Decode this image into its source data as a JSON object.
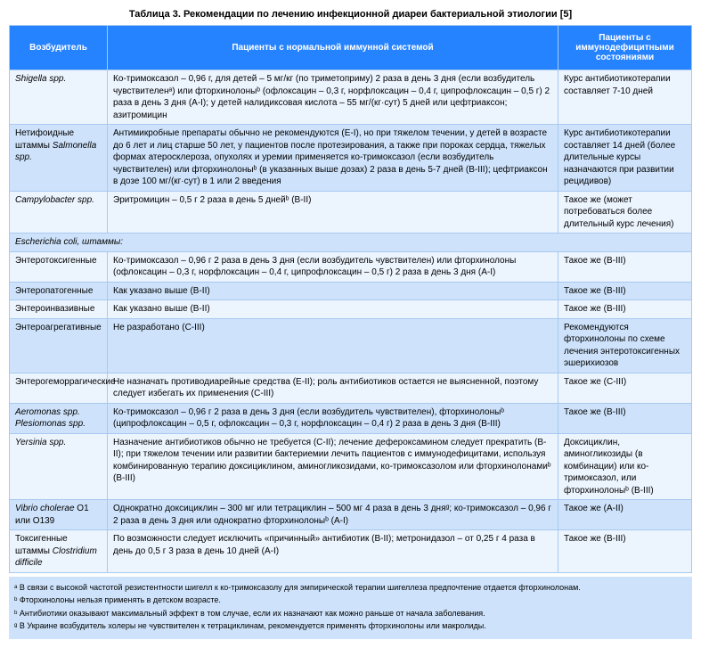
{
  "title": "Таблица 3. Рекомендации по лечению инфекционной диареи бактериальной этиологии [5]",
  "headers": {
    "pathogen": "Возбудитель",
    "normal": "Пациенты с нормальной иммунной системой",
    "immuno": "Пациенты с иммунодефицитными состояниями"
  },
  "rows": [
    {
      "cls": "light",
      "c1": "Shigella spp.",
      "c1_italic": true,
      "c2": "Ко-тримоксазол – 0,96 г, для детей – 5 мг/кг (по триметоприму) 2 раза в день 3 дня (если возбудитель чувствителенᵃ) или фторхинолоныᵇ (офлоксацин – 0,3 г, норфлоксацин – 0,4 г, ципрофлоксацин – 0,5 г) 2 раза в день 3 дня (A-I); у детей налидиксовая кислота – 55 мг/(кг·сут) 5 дней или цефтриаксон; азитромицин",
      "c3": "Курс антибиотикотерапии составляет 7-10 дней"
    },
    {
      "cls": "dark",
      "c1": "Нетифоидные штаммы Salmonella spp.",
      "c1_html": "Нетифоидные штаммы <i>Salmonella spp.</i>",
      "c2": "Антимикробные препараты обычно не рекомендуются (E-I), но при тяжелом течении, у детей в возрасте до 6 лет и лиц старше 50 лет, у пациентов после протезирования, а также при пороках сердца, тяжелых формах атеросклероза, опухолях и уремии применяется ко-тримоксазол (если возбудитель чувствителен) или фторхинолоныᵇ (в указанных выше дозах) 2 раза в день 5-7 дней (B-III); цефтриаксон в дозе 100 мг/(кг·сут) в 1 или 2 введения",
      "c3": "Курс антибиотикотерапии составляет 14 дней (более длительные курсы назначаются при развитии рецидивов)"
    },
    {
      "cls": "light",
      "c1": "Campylobacter spp.",
      "c1_italic": true,
      "c2": "Эритромицин – 0,5 г 2 раза в день 5 днейᵇ (B-II)",
      "c3": "Такое же (может потребоваться более длительный курс лечения)"
    }
  ],
  "subheader": "Escherichia coli, штаммы:",
  "subheader_html": "<i>Escherichia coli</i>, штаммы:",
  "rows2": [
    {
      "cls": "light",
      "c1": "Энтеротоксигенные",
      "c2": "Ко-тримоксазол – 0,96 г 2 раза в день 3 дня (если возбудитель чувствителен) или фторхинолоны (офлоксацин – 0,3 г, норфлоксацин – 0,4 г, ципрофлоксацин – 0,5 г) 2 раза в день 3 дня (A-I)",
      "c3": "Такое же (B-III)"
    },
    {
      "cls": "dark",
      "c1": "Энтеропатогенные",
      "c2": "Как указано выше (B-II)",
      "c3": "Такое же (B-III)"
    },
    {
      "cls": "light",
      "c1": "Энтероинвазивные",
      "c2": "Как указано выше (B-II)",
      "c3": "Такое же (B-III)"
    },
    {
      "cls": "dark",
      "c1": "Энтероагрегативные",
      "c2": "Не разработано (C-III)",
      "c3": "Рекомендуются фторхинолоны по схеме лечения энтеротоксигенных эшерихиозов"
    },
    {
      "cls": "light",
      "c1": "Энтерогеморрагические",
      "c2": "Не назначать противодиарейные средства (E-II); роль антибиотиков остается не выясненной, поэтому следует избегать их применения (C-III)",
      "c3": "Такое же (C-III)"
    },
    {
      "cls": "dark",
      "c1": "Aeromonas spp. Plesiomonas spp.",
      "c1_italic": true,
      "c2": "Ко-тримоксазол – 0,96 г 2 раза в день 3 дня (если возбудитель чувствителен), фторхинолоныᵇ (ципрофлоксацин – 0,5 г, офлоксацин – 0,3 г, норфлоксацин – 0,4 г) 2 раза в день 3 дня (B-III)",
      "c3": "Такое же (B-III)"
    },
    {
      "cls": "light",
      "c1": "Yersinia spp.",
      "c1_italic": true,
      "c2": "Назначение антибиотиков обычно не требуется (C-II); лечение дефероксамином следует прекратить (B-II); при тяжелом течении или развитии бактериемии лечить пациентов с иммунодефицитами, используя комбинированную терапию доксициклином, аминогликозидами, ко-тримоксазолом или фторхинолонамиᵇ (B-III)",
      "c3": "Доксициклин, аминогликозиды (в комбинации) или ко-тримоксазол, или фторхинолоныᵇ (B-III)"
    },
    {
      "cls": "dark",
      "c1": "Vibrio cholerae O1 или O139",
      "c1_html": "<i>Vibrio cholerae</i> O1 или O139",
      "c2": "Однократно доксициклин – 300 мг или тетрациклин – 500 мг 4 раза в день 3 дняᵍ; ко-тримоксазол – 0,96 г 2 раза в день 3 дня или однократно фторхинолоныᵇ (A-I)",
      "c3": "Такое же (A-II)"
    },
    {
      "cls": "light",
      "c1": "Токсигенные штаммы Clostridium difficile",
      "c1_html": "Токсигенные штаммы <i>Clostridium difficile</i>",
      "c2": "По возможности следует исключить «причинный» антибиотик (B-II); метронидазол – от 0,25 г 4 раза в день до 0,5 г 3 раза в день 10 дней (A-I)",
      "c3": "Такое же (B-III)"
    }
  ],
  "footnotes": [
    "ᵃ В связи с высокой частотой резистентности шигелл к ко-тримоксазолу для эмпирической терапии шигеллеза предпочтение отдается фторхинолонам.",
    "ᵇ Фторхинолоны нельзя применять в детском возрасте.",
    "ᵇ Антибиотики оказывают максимальный эффект в том случае, если их назначают как можно раньше от начала заболевания.",
    "ᵍ В Украине возбудитель холеры не чувствителен к тетрациклинам, рекомендуется применять фторхинолоны или макролиды."
  ],
  "colors": {
    "header_bg": "#2683ff",
    "header_fg": "#ffffff",
    "row_light": "#ecf4fe",
    "row_dark": "#cee3fb",
    "border": "#a8c9f0"
  }
}
